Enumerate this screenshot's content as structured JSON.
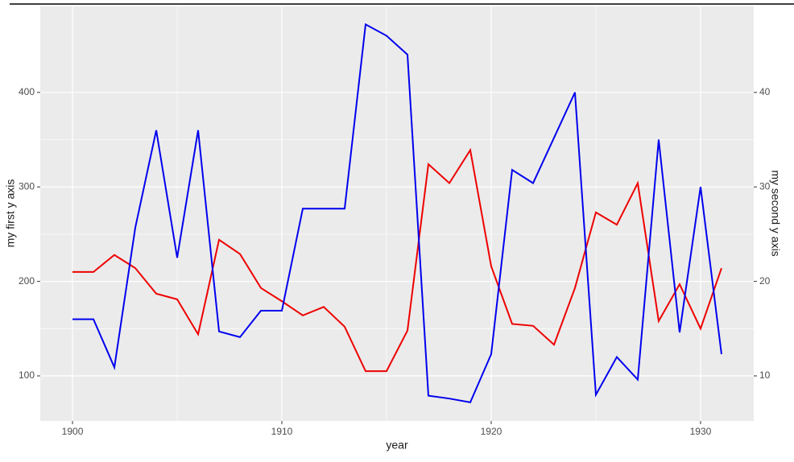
{
  "chart_data": {
    "type": "line",
    "x_label": "year",
    "y_label": "my first y axis",
    "y2_label": "my second y axis",
    "x": [
      1900,
      1901,
      1902,
      1903,
      1904,
      1905,
      1906,
      1907,
      1908,
      1909,
      1910,
      1911,
      1912,
      1913,
      1914,
      1915,
      1916,
      1917,
      1918,
      1919,
      1920,
      1921,
      1922,
      1923,
      1924,
      1925,
      1926,
      1927,
      1928,
      1929,
      1930,
      1931
    ],
    "series": [
      {
        "color": "#ee0000",
        "axis": "y",
        "values": [
          210,
          210,
          228,
          214,
          187,
          181,
          144,
          244,
          229,
          193,
          179,
          164,
          173,
          152,
          105,
          105,
          148,
          324,
          304,
          339,
          216,
          155,
          153,
          133,
          193,
          273,
          260,
          304,
          158,
          197,
          150,
          214
        ]
      },
      {
        "color": "#0000ee",
        "axis": "y2",
        "values": [
          16,
          16,
          10.9,
          25.7,
          36,
          22.5,
          36,
          14.7,
          14.1,
          16.9,
          16.9,
          27.7,
          27.7,
          27.7,
          47.2,
          46,
          44,
          7.9,
          7.6,
          7.2,
          12.3,
          31.8,
          30.4,
          35.2,
          40,
          8,
          12,
          9.6,
          35,
          14.6,
          30,
          12.3
        ]
      }
    ],
    "xlim": [
      1898.46,
      1932.54
    ],
    "xticks": [
      1900,
      1910,
      1920,
      1930
    ],
    "ylim": [
      52.3,
      491
    ],
    "yticks": [
      100,
      200,
      300,
      400
    ],
    "y2lim": [
      5.23,
      49.1
    ],
    "y2ticks": [
      10,
      20,
      30,
      40
    ],
    "grid": true
  }
}
